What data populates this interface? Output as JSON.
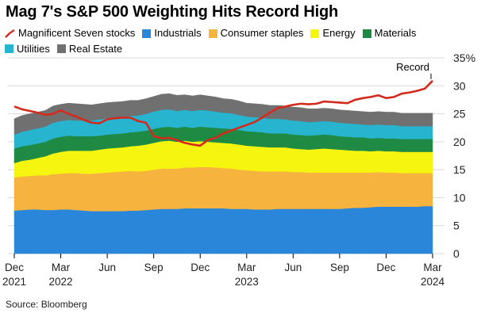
{
  "title": "Mag 7's S&P 500 Weighting Hits Record High",
  "source": "Source: Bloomberg",
  "colors": {
    "magnificent_seven": "#d42a1e",
    "industrials": "#2a86d8",
    "consumer_staples": "#f6b33d",
    "energy": "#f5f50f",
    "materials": "#1f8a43",
    "utilities": "#27b4cf",
    "real_estate": "#707070"
  },
  "legend": [
    {
      "label": "Magnificent Seven stocks",
      "type": "line",
      "color_key": "magnificent_seven"
    },
    {
      "label": "Industrials",
      "type": "area",
      "color_key": "industrials"
    },
    {
      "label": "Consumer staples",
      "type": "area",
      "color_key": "consumer_staples"
    },
    {
      "label": "Energy",
      "type": "area",
      "color_key": "energy"
    },
    {
      "label": "Materials",
      "type": "area",
      "color_key": "materials"
    },
    {
      "label": "Utilities",
      "type": "area",
      "color_key": "utilities"
    },
    {
      "label": "Real Estate",
      "type": "area",
      "color_key": "real_estate"
    }
  ],
  "chart_data": {
    "type": "area",
    "title": "Mag 7's S&P 500 Weighting Hits Record High",
    "xlabel": "",
    "ylabel": "",
    "ylim": [
      0,
      35
    ],
    "yticks": [
      "0",
      "5",
      "10",
      "15",
      "20",
      "25",
      "30",
      "35%"
    ],
    "ytick_values": [
      0,
      5,
      10,
      15,
      20,
      25,
      30,
      35
    ],
    "grid": true,
    "x_range": [
      0,
      27
    ],
    "x_unit": "months since Dec 2021",
    "xticks": [
      {
        "pos": 0,
        "label": "Dec",
        "year": "2021"
      },
      {
        "pos": 3,
        "label": "Mar",
        "year": "2022"
      },
      {
        "pos": 6,
        "label": "Jun",
        "year": ""
      },
      {
        "pos": 9,
        "label": "Sep",
        "year": ""
      },
      {
        "pos": 12,
        "label": "Dec",
        "year": ""
      },
      {
        "pos": 15,
        "label": "Mar",
        "year": "2023"
      },
      {
        "pos": 18,
        "label": "Jun",
        "year": ""
      },
      {
        "pos": 21,
        "label": "Sep",
        "year": ""
      },
      {
        "pos": 24,
        "label": "Dec",
        "year": ""
      },
      {
        "pos": 27,
        "label": "Mar",
        "year": "2024"
      }
    ],
    "x": [
      0,
      0.5,
      1,
      1.5,
      2,
      2.5,
      3,
      3.5,
      4,
      4.5,
      5,
      5.5,
      6,
      6.5,
      7,
      7.5,
      8,
      8.5,
      9,
      9.5,
      10,
      10.5,
      11,
      11.5,
      12,
      12.5,
      13,
      13.5,
      14,
      14.5,
      15,
      15.5,
      16,
      16.5,
      17,
      17.5,
      18,
      18.5,
      19,
      19.5,
      20,
      20.5,
      21,
      21.5,
      22,
      22.5,
      23,
      23.5,
      24,
      24.5,
      25,
      25.5,
      26,
      26.5,
      27
    ],
    "stacked_series": [
      {
        "name": "Industrials",
        "color_key": "industrials",
        "values": [
          7.7,
          7.8,
          7.9,
          7.9,
          7.8,
          7.8,
          7.9,
          7.9,
          7.8,
          7.7,
          7.6,
          7.6,
          7.6,
          7.6,
          7.6,
          7.7,
          7.7,
          7.8,
          7.9,
          8.0,
          8.0,
          8.0,
          8.1,
          8.1,
          8.1,
          8.1,
          8.1,
          8.1,
          8.0,
          8.0,
          8.0,
          7.9,
          7.9,
          7.9,
          8.0,
          8.0,
          8.0,
          8.0,
          8.0,
          8.0,
          8.0,
          8.0,
          8.0,
          8.1,
          8.2,
          8.2,
          8.3,
          8.4,
          8.4,
          8.4,
          8.4,
          8.4,
          8.4,
          8.5,
          8.5
        ]
      },
      {
        "name": "Consumer staples",
        "color_key": "consumer_staples",
        "values": [
          5.9,
          6.0,
          6.0,
          6.1,
          6.2,
          6.4,
          6.4,
          6.5,
          6.6,
          6.6,
          6.7,
          6.8,
          6.9,
          7.0,
          7.1,
          7.1,
          7.0,
          7.0,
          7.1,
          7.2,
          7.2,
          7.2,
          7.3,
          7.3,
          7.4,
          7.4,
          7.3,
          7.2,
          7.2,
          7.0,
          6.9,
          6.9,
          6.8,
          6.8,
          6.7,
          6.7,
          6.6,
          6.6,
          6.5,
          6.5,
          6.5,
          6.5,
          6.5,
          6.4,
          6.3,
          6.3,
          6.2,
          6.2,
          6.1,
          6.1,
          6.0,
          6.0,
          6.0,
          5.9,
          5.9
        ]
      },
      {
        "name": "Energy",
        "color_key": "energy",
        "values": [
          2.6,
          2.8,
          2.9,
          3.1,
          3.4,
          3.7,
          3.9,
          4.0,
          4.0,
          4.1,
          4.1,
          4.2,
          4.3,
          4.3,
          4.3,
          4.4,
          4.6,
          4.7,
          4.8,
          4.9,
          5.0,
          4.8,
          4.8,
          4.6,
          4.6,
          4.5,
          4.5,
          4.5,
          4.5,
          4.5,
          4.4,
          4.4,
          4.4,
          4.3,
          4.3,
          4.3,
          4.2,
          4.1,
          4.1,
          4.2,
          4.3,
          4.2,
          4.1,
          4.0,
          3.9,
          3.9,
          3.8,
          3.8,
          3.8,
          3.8,
          3.8,
          3.8,
          3.8,
          3.8,
          3.8
        ]
      },
      {
        "name": "Materials",
        "color_key": "materials",
        "values": [
          2.6,
          2.6,
          2.6,
          2.6,
          2.6,
          2.7,
          2.7,
          2.7,
          2.6,
          2.6,
          2.6,
          2.5,
          2.5,
          2.5,
          2.5,
          2.5,
          2.5,
          2.5,
          2.5,
          2.5,
          2.5,
          2.5,
          2.5,
          2.5,
          2.6,
          2.6,
          2.6,
          2.6,
          2.6,
          2.6,
          2.6,
          2.6,
          2.6,
          2.5,
          2.5,
          2.5,
          2.5,
          2.5,
          2.5,
          2.5,
          2.5,
          2.5,
          2.4,
          2.4,
          2.4,
          2.4,
          2.3,
          2.3,
          2.3,
          2.3,
          2.3,
          2.3,
          2.3,
          2.3,
          2.3
        ]
      },
      {
        "name": "Utilities",
        "color_key": "utilities",
        "values": [
          2.5,
          2.6,
          2.7,
          2.7,
          2.7,
          2.8,
          2.8,
          2.8,
          2.8,
          2.8,
          2.8,
          2.9,
          2.9,
          2.9,
          2.9,
          2.9,
          2.9,
          3.0,
          3.1,
          3.1,
          3.1,
          3.0,
          3.0,
          3.0,
          3.0,
          3.0,
          2.9,
          2.8,
          2.8,
          2.7,
          2.6,
          2.6,
          2.6,
          2.6,
          2.6,
          2.5,
          2.5,
          2.5,
          2.4,
          2.4,
          2.4,
          2.4,
          2.4,
          2.4,
          2.4,
          2.3,
          2.4,
          2.4,
          2.4,
          2.4,
          2.3,
          2.3,
          2.3,
          2.3,
          2.3
        ]
      },
      {
        "name": "Real Estate",
        "color_key": "real_estate",
        "values": [
          2.8,
          2.9,
          2.9,
          2.9,
          2.9,
          3.0,
          3.0,
          3.0,
          3.0,
          2.9,
          2.8,
          2.8,
          2.8,
          2.8,
          2.8,
          2.8,
          2.7,
          2.7,
          2.7,
          2.8,
          2.8,
          2.8,
          2.7,
          2.7,
          2.7,
          2.6,
          2.6,
          2.5,
          2.5,
          2.5,
          2.4,
          2.4,
          2.4,
          2.4,
          2.4,
          2.4,
          2.4,
          2.4,
          2.4,
          2.3,
          2.3,
          2.3,
          2.3,
          2.3,
          2.3,
          2.3,
          2.3,
          2.3,
          2.3,
          2.3,
          2.3,
          2.3,
          2.3,
          2.3,
          2.3
        ]
      }
    ],
    "line_series": {
      "name": "Magnificent Seven stocks",
      "color_key": "magnificent_seven",
      "values": [
        26.3,
        25.8,
        25.5,
        25.2,
        24.8,
        25.0,
        25.6,
        25.0,
        24.5,
        23.9,
        23.4,
        23.3,
        24.0,
        24.2,
        24.3,
        24.3,
        23.7,
        23.4,
        21.0,
        20.6,
        20.7,
        20.3,
        19.8,
        19.5,
        19.3,
        20.3,
        20.7,
        21.5,
        22.0,
        22.5,
        23.0,
        23.5,
        24.3,
        25.2,
        26.0,
        26.3,
        26.6,
        26.8,
        26.7,
        26.8,
        27.2,
        27.1,
        27.0,
        26.9,
        27.5,
        27.8,
        28.0,
        28.3,
        27.8,
        28.0,
        28.6,
        28.8,
        29.1,
        29.5,
        30.9
      ]
    },
    "annotations": [
      {
        "text": "Record",
        "x": 27,
        "y": 30.9
      }
    ]
  }
}
